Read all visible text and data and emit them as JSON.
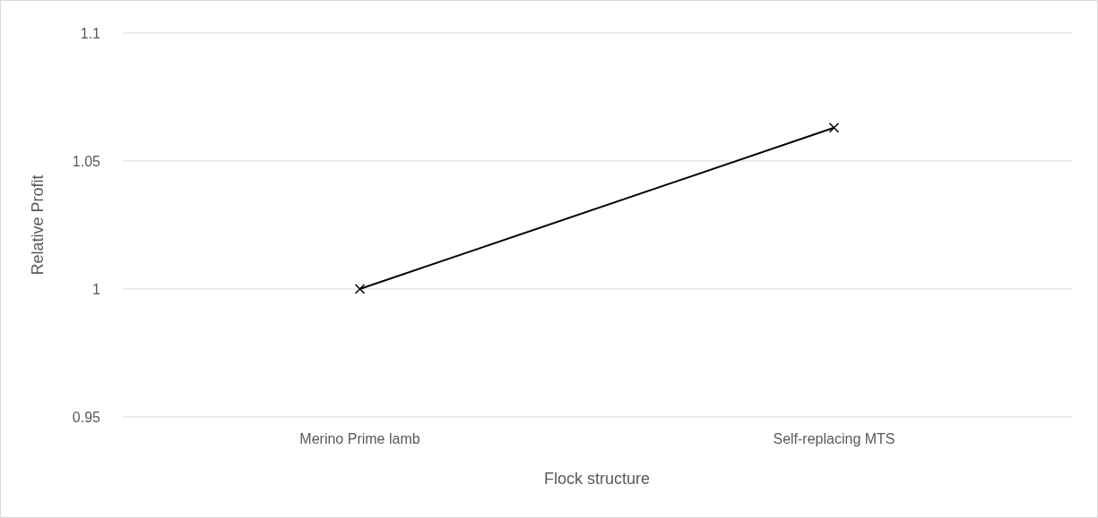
{
  "chart_data": {
    "type": "line",
    "xlabel": "Flock structure",
    "ylabel": "Relative Profit",
    "categories": [
      "Merino Prime lamb",
      "Self-replacing MTS"
    ],
    "series": [
      {
        "color": "#000000",
        "values": [
          1,
          1.063
        ]
      }
    ],
    "ylim": [
      0.95,
      1.1
    ],
    "yticks": [
      0.95,
      1,
      1.05,
      1.1
    ],
    "grid": "y",
    "marker": "cross",
    "line_style": "solid"
  }
}
